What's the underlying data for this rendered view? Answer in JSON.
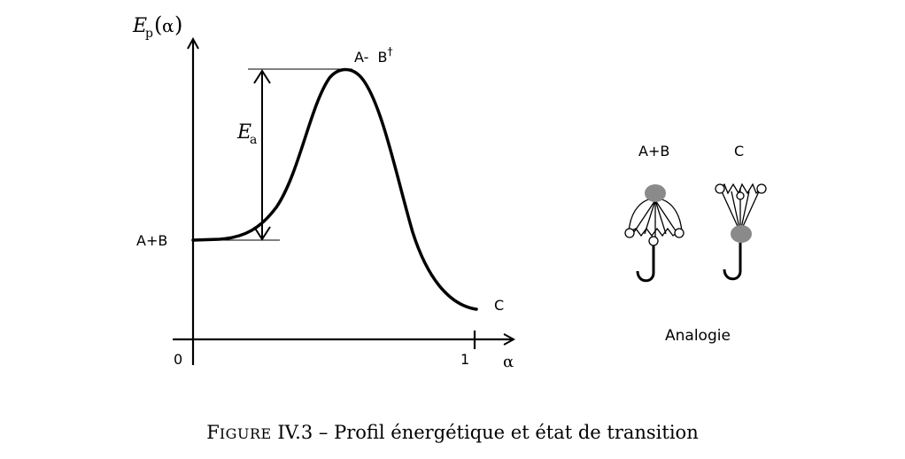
{
  "diagram": {
    "y_axis_label": {
      "main": "E",
      "sub": "p",
      "arg": "α"
    },
    "x_axis_label": "α",
    "origin_label": "0",
    "x_end_label": "1",
    "reactants_label": "A+B",
    "transition_label": "A-  B",
    "transition_sup": "†",
    "products_label": "C",
    "activation_label": {
      "main": "E",
      "sub": "a"
    }
  },
  "analogy": {
    "label_ab": "A+B",
    "label_c": "C",
    "caption": "Analogie",
    "fill_color": "#8a8a8a"
  },
  "figure_caption": {
    "prefix_first": "F",
    "prefix_rest": "IGURE",
    "number": "IV.3",
    "dash": "–",
    "text": "Profil énergétique et état de transition"
  }
}
